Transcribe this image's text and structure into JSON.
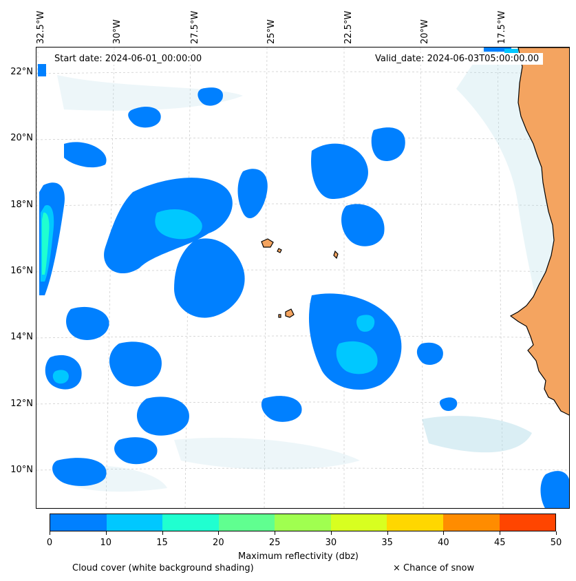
{
  "map": {
    "start_date": "Start date: 2024-06-01_00:00:00",
    "valid_date": "Valid_date: 2024-06-03T05:00:00.00",
    "lon_labels": [
      "32.5°W",
      "30°W",
      "27.5°W",
      "25°W",
      "22.5°W",
      "20°W",
      "17.5°W"
    ],
    "lat_labels": [
      "22°N",
      "20°N",
      "18°N",
      "16°N",
      "14°N",
      "12°N",
      "10°N"
    ],
    "land_color": "#f4a460",
    "coast_color": "#000000",
    "cloud_color": "#add8e6",
    "reflectivity_colors": [
      "#0080ff",
      "#00c8ff",
      "#20ffd0",
      "#60ff90",
      "#a0ff50",
      "#d8ff20",
      "#ffd700",
      "#ff8c00",
      "#ff4500"
    ]
  },
  "colorbar": {
    "ticks": [
      "0",
      "10",
      "15",
      "20",
      "25",
      "30",
      "35",
      "40",
      "45",
      "50"
    ],
    "label": "Maximum reflectivity (dbz)"
  },
  "legend": {
    "cloud_cover": "Cloud cover (white background shading)",
    "snow": "× Chance of snow"
  }
}
